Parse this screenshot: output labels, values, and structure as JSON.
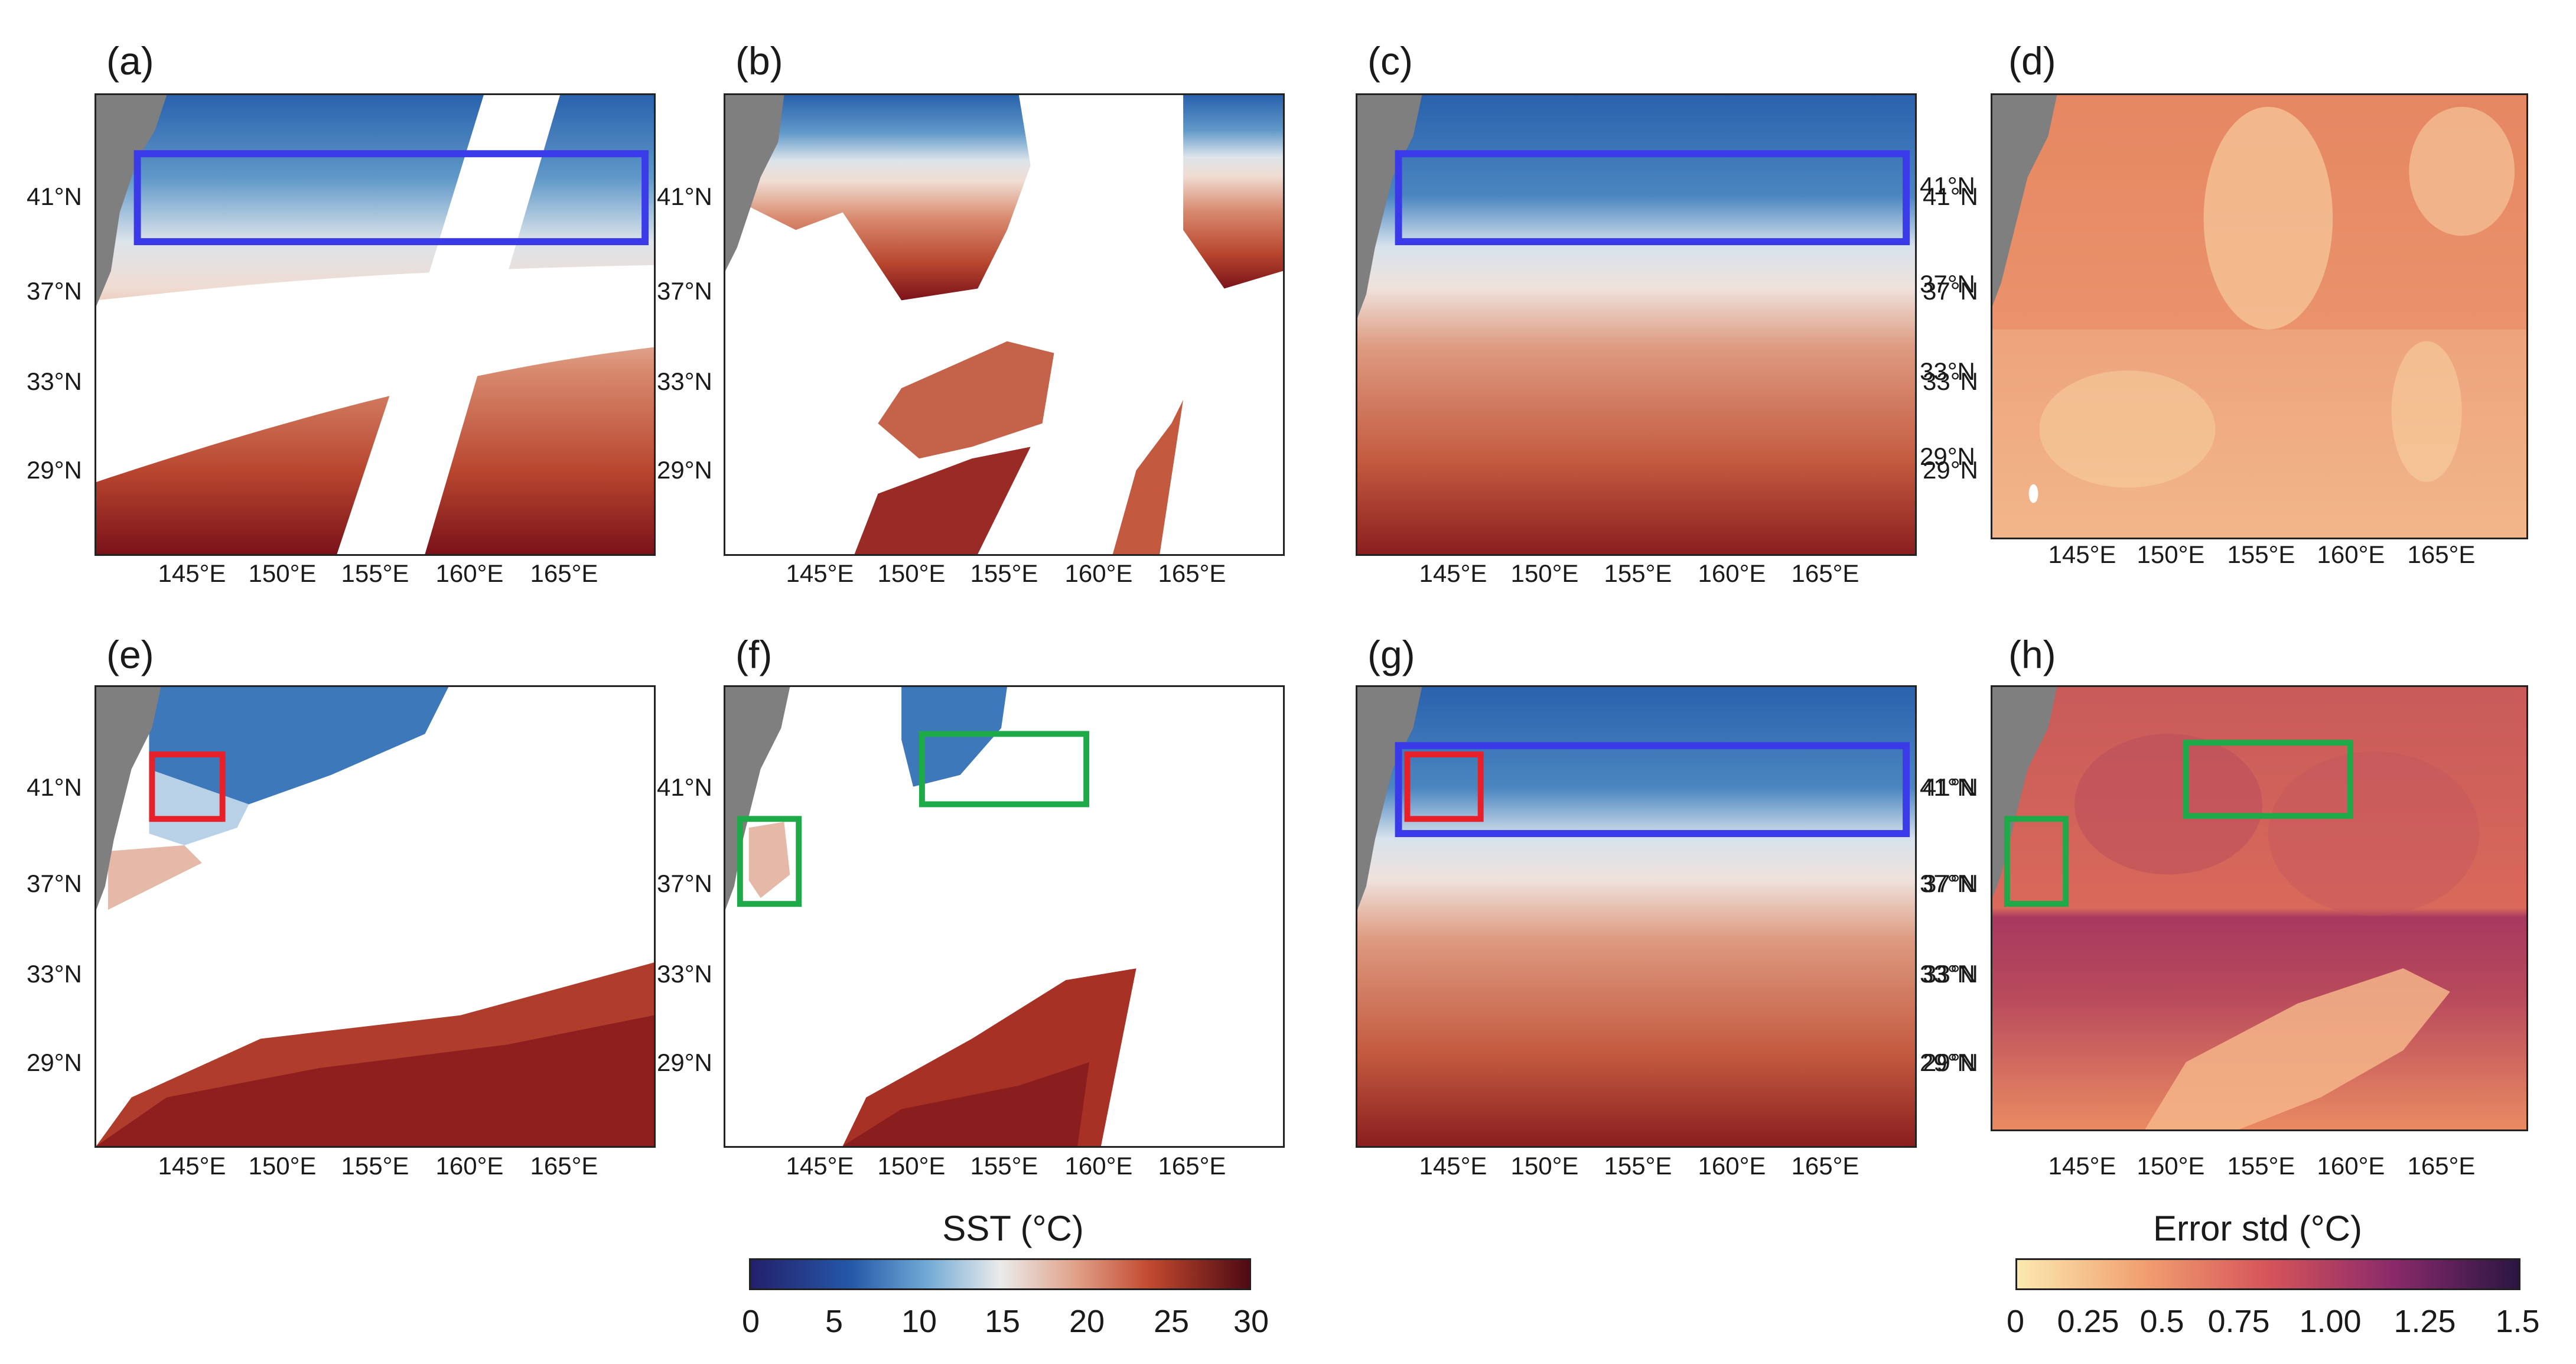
{
  "panels": [
    {
      "label": "(a)"
    },
    {
      "label": "(b)"
    },
    {
      "label": "(c)"
    },
    {
      "label": "(d)"
    },
    {
      "label": "(e)"
    },
    {
      "label": "(f)"
    },
    {
      "label": "(g)"
    },
    {
      "label": "(h)"
    }
  ],
  "lat_labels": [
    "41°N",
    "37°N",
    "33°N",
    "29°N"
  ],
  "lon_labels": [
    "145°E",
    "150°E",
    "155°E",
    "160°E",
    "165°E"
  ],
  "sst_colorbar": {
    "title": "SST (°C)",
    "ticks": [
      "0",
      "5",
      "10",
      "15",
      "20",
      "25",
      "30"
    ]
  },
  "error_colorbar": {
    "title": "Error std (°C)",
    "ticks": [
      "0",
      "0.25",
      "0.5",
      "0.75",
      "1.00",
      "1.25",
      "1.5"
    ]
  },
  "colors": {
    "sst_cold": "#23206b",
    "sst_cool": "#2f6fb8",
    "sst_mid": "#e8e8e8",
    "sst_warm": "#c7513a",
    "sst_hot": "#4e0a14",
    "err_low": "#fbe5a8",
    "err_mid": "#e07555",
    "err_high": "#2a1642",
    "land": "#7f7f7f",
    "box_blue": "#3a3ae8",
    "box_red": "#e8202a",
    "box_green": "#1faa4a"
  }
}
